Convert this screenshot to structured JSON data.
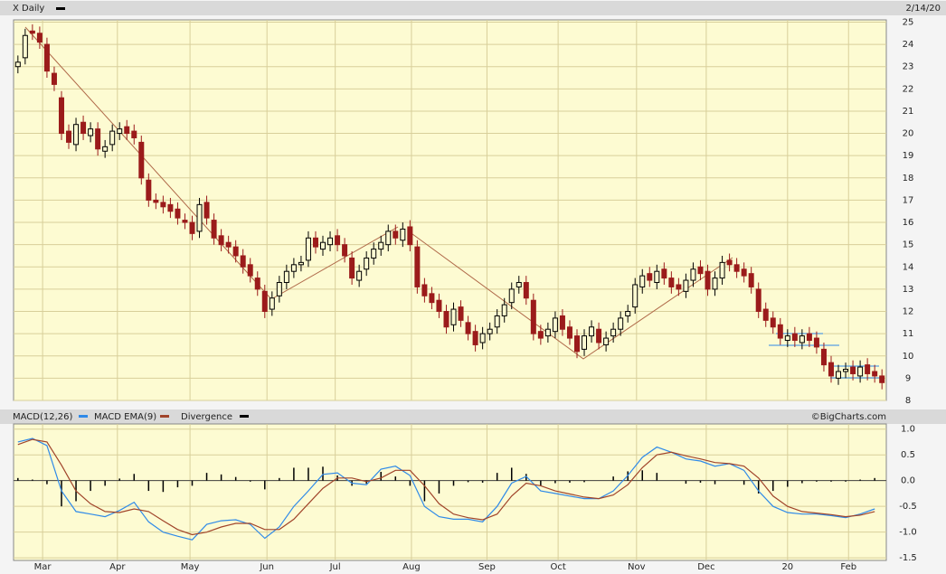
{
  "header": {
    "symbol_label": "X Daily",
    "date": "2/14/20",
    "credit": "©BigCharts.com"
  },
  "chart_data": [
    {
      "type": "candlestick",
      "up_color": "#000000",
      "down_color": "#9b1b1b",
      "grid": true,
      "xlim": [
        -0.6,
        119.6
      ],
      "xticks": [
        {
          "value": 3.4,
          "label": "Mar"
        },
        {
          "value": 13.7,
          "label": "Apr"
        },
        {
          "value": 23.7,
          "label": "May"
        },
        {
          "value": 34.3,
          "label": "Jun"
        },
        {
          "value": 43.7,
          "label": "Jul"
        },
        {
          "value": 54.2,
          "label": "Aug"
        },
        {
          "value": 64.6,
          "label": "Sep"
        },
        {
          "value": 74.4,
          "label": "Oct"
        },
        {
          "value": 85.2,
          "label": "Nov"
        },
        {
          "value": 94.8,
          "label": "Dec"
        },
        {
          "value": 106,
          "label": "20"
        },
        {
          "value": 114.4,
          "label": "Feb"
        }
      ],
      "ylim": [
        8,
        25.1
      ],
      "yticks": [
        8,
        9,
        10,
        11,
        12,
        13,
        14,
        15,
        16,
        17,
        18,
        19,
        20,
        21,
        22,
        23,
        24,
        25
      ],
      "open": [
        23.0,
        23.4,
        24.6,
        24.5,
        24.0,
        22.7,
        21.6,
        20.1,
        19.5,
        20.5,
        19.9,
        20.2,
        19.2,
        19.5,
        20.0,
        20.3,
        20.1,
        19.6,
        17.9,
        17.0,
        16.9,
        16.8,
        16.6,
        16.1,
        16.0,
        15.6,
        16.9,
        16.1,
        15.4,
        15.1,
        14.9,
        14.5,
        14.1,
        13.5,
        12.9,
        12.1,
        12.7,
        13.3,
        13.8,
        14.1,
        14.3,
        15.3,
        14.8,
        15.0,
        15.4,
        15.0,
        14.4,
        13.4,
        13.9,
        14.4,
        14.8,
        15.0,
        15.6,
        15.2,
        15.8,
        14.9,
        13.2,
        12.8,
        12.5,
        12.0,
        11.4,
        12.2,
        11.5,
        11.1,
        10.6,
        11.0,
        11.3,
        11.8,
        12.4,
        13.1,
        13.3,
        12.5,
        11.1,
        10.9,
        11.1,
        11.8,
        11.3,
        10.9,
        10.3,
        10.9,
        11.2,
        10.5,
        10.9,
        11.2,
        11.8,
        12.2,
        13.1,
        13.7,
        13.3,
        13.9,
        13.5,
        13.2,
        12.9,
        13.4,
        14.0,
        13.8,
        13.0,
        13.5,
        14.3,
        14.1,
        13.9,
        13.7,
        13.0,
        12.1,
        11.7,
        11.4,
        10.7,
        11.0,
        10.6,
        11.0,
        10.8,
        10.3,
        9.7,
        9.0,
        9.3,
        9.5,
        9.1,
        9.6,
        9.3,
        9.1
      ],
      "high": [
        23.5,
        24.7,
        24.9,
        24.8,
        24.3,
        23.0,
        21.9,
        20.4,
        20.7,
        20.8,
        20.5,
        20.5,
        19.7,
        20.4,
        20.5,
        20.6,
        20.4,
        19.9,
        18.2,
        17.3,
        17.2,
        17.1,
        16.9,
        16.4,
        16.3,
        17.1,
        17.2,
        16.4,
        15.7,
        15.4,
        15.2,
        14.8,
        14.4,
        13.8,
        13.2,
        12.9,
        13.6,
        14.1,
        14.4,
        14.5,
        15.6,
        15.6,
        15.4,
        15.6,
        15.7,
        15.3,
        14.7,
        14.1,
        14.7,
        15.1,
        15.4,
        15.9,
        15.9,
        16.0,
        16.1,
        15.2,
        13.5,
        13.1,
        12.8,
        12.3,
        12.4,
        12.5,
        11.8,
        11.4,
        11.3,
        11.5,
        12.1,
        12.6,
        13.3,
        13.6,
        13.6,
        12.8,
        11.4,
        11.5,
        12.0,
        12.1,
        11.6,
        11.2,
        11.2,
        11.6,
        11.5,
        11.1,
        11.5,
        12.0,
        12.3,
        13.5,
        13.9,
        14.0,
        14.1,
        14.2,
        13.8,
        13.5,
        13.7,
        14.2,
        14.3,
        14.1,
        13.8,
        14.5,
        14.6,
        14.4,
        14.2,
        14.0,
        13.3,
        12.4,
        12.0,
        11.7,
        11.2,
        11.3,
        11.2,
        11.3,
        11.1,
        10.6,
        10.0,
        9.6,
        9.7,
        9.8,
        9.8,
        9.9,
        9.6,
        9.4
      ],
      "low": [
        22.7,
        23.1,
        24.2,
        23.8,
        22.5,
        21.9,
        19.7,
        19.3,
        19.2,
        19.7,
        19.6,
        19.0,
        18.9,
        19.2,
        19.7,
        19.7,
        19.5,
        17.7,
        16.7,
        16.6,
        16.4,
        16.2,
        15.9,
        15.7,
        15.2,
        15.3,
        15.9,
        15.0,
        14.7,
        14.6,
        14.2,
        13.7,
        13.3,
        12.7,
        11.7,
        11.8,
        12.4,
        13.0,
        13.5,
        13.8,
        14.0,
        14.6,
        14.5,
        14.7,
        14.7,
        14.2,
        13.2,
        13.1,
        13.6,
        14.1,
        14.5,
        14.7,
        15.0,
        14.9,
        14.7,
        12.8,
        12.4,
        12.1,
        11.7,
        11.0,
        11.1,
        11.3,
        10.7,
        10.2,
        10.3,
        10.7,
        11.0,
        11.5,
        12.1,
        12.8,
        12.3,
        10.7,
        10.5,
        10.6,
        10.8,
        10.9,
        10.5,
        9.9,
        10.0,
        10.6,
        10.3,
        10.2,
        10.6,
        10.9,
        11.5,
        11.9,
        12.8,
        13.1,
        13.0,
        13.2,
        12.8,
        12.7,
        12.6,
        13.1,
        13.4,
        12.7,
        12.7,
        13.2,
        13.8,
        13.5,
        13.3,
        12.8,
        11.7,
        11.3,
        11.0,
        10.5,
        10.4,
        10.4,
        10.3,
        10.4,
        10.1,
        9.3,
        8.8,
        8.7,
        9.0,
        8.9,
        8.8,
        8.9,
        8.8,
        8.5
      ],
      "close": [
        23.2,
        24.4,
        24.5,
        24.1,
        22.8,
        22.2,
        20.0,
        19.6,
        20.4,
        20.0,
        20.2,
        19.3,
        19.4,
        20.1,
        20.2,
        20.0,
        19.8,
        18.0,
        17.0,
        16.9,
        16.7,
        16.5,
        16.2,
        16.0,
        15.5,
        16.8,
        16.2,
        15.3,
        15.0,
        14.9,
        14.5,
        14.0,
        13.6,
        13.0,
        12.0,
        12.6,
        13.3,
        13.8,
        14.1,
        14.2,
        15.3,
        14.9,
        15.1,
        15.3,
        15.0,
        14.5,
        13.5,
        13.8,
        14.4,
        14.8,
        15.1,
        15.6,
        15.3,
        15.7,
        15.0,
        13.1,
        12.7,
        12.4,
        12.0,
        11.3,
        12.1,
        11.6,
        11.0,
        10.5,
        11.0,
        11.2,
        11.8,
        12.3,
        13.0,
        13.3,
        12.6,
        11.0,
        10.8,
        11.2,
        11.7,
        11.2,
        10.8,
        10.2,
        10.9,
        11.3,
        10.6,
        10.8,
        11.2,
        11.7,
        12.0,
        13.2,
        13.6,
        13.4,
        13.8,
        13.5,
        13.1,
        13.0,
        13.4,
        13.9,
        13.7,
        13.0,
        13.5,
        14.2,
        14.1,
        13.8,
        13.6,
        13.1,
        12.0,
        11.6,
        11.3,
        10.8,
        10.9,
        10.7,
        10.9,
        10.7,
        10.4,
        9.6,
        9.1,
        9.3,
        9.4,
        9.2,
        9.5,
        9.2,
        9.1,
        8.8
      ]
    },
    {
      "type": "macd",
      "xlim": [
        -0.6,
        119.6
      ],
      "ylim": [
        -1.55,
        1.1
      ],
      "yticks": [
        {
          "value": 1.0,
          "label": "1.0"
        },
        0.5,
        {
          "value": 0,
          "label": "0.0"
        },
        -0.5,
        {
          "value": -1.0,
          "label": "-1.0"
        },
        -1.5
      ],
      "x": [
        0,
        2,
        4,
        6,
        8,
        10,
        12,
        14,
        16,
        18,
        20,
        22,
        24,
        26,
        28,
        30,
        32,
        34,
        36,
        38,
        40,
        42,
        44,
        46,
        48,
        50,
        52,
        54,
        56,
        58,
        60,
        62,
        64,
        66,
        68,
        70,
        72,
        74,
        76,
        78,
        80,
        82,
        84,
        86,
        88,
        90,
        92,
        94,
        96,
        98,
        100,
        102,
        104,
        106,
        108,
        110,
        112,
        114,
        116,
        118
      ],
      "series": [
        {
          "name": "MACD(12,26)",
          "color": "#2f8ae8",
          "style": "line",
          "values": [
            0.75,
            0.82,
            0.68,
            -0.2,
            -0.6,
            -0.65,
            -0.7,
            -0.58,
            -0.42,
            -0.8,
            -1.0,
            -1.08,
            -1.15,
            -0.85,
            -0.78,
            -0.76,
            -0.85,
            -1.12,
            -0.9,
            -0.5,
            -0.2,
            0.12,
            0.15,
            -0.05,
            -0.08,
            0.22,
            0.28,
            0.1,
            -0.5,
            -0.7,
            -0.75,
            -0.75,
            -0.8,
            -0.5,
            -0.05,
            0.08,
            -0.2,
            -0.25,
            -0.3,
            -0.35,
            -0.35,
            -0.2,
            0.1,
            0.45,
            0.65,
            0.55,
            0.42,
            0.38,
            0.28,
            0.33,
            0.2,
            -0.2,
            -0.5,
            -0.62,
            -0.65,
            -0.65,
            -0.68,
            -0.72,
            -0.65,
            -0.55
          ]
        },
        {
          "name": "MACD EMA(9)",
          "color": "#a0442a",
          "style": "line",
          "values": [
            0.7,
            0.8,
            0.75,
            0.3,
            -0.2,
            -0.45,
            -0.6,
            -0.62,
            -0.55,
            -0.6,
            -0.78,
            -0.95,
            -1.05,
            -1.0,
            -0.9,
            -0.83,
            -0.83,
            -0.95,
            -0.95,
            -0.75,
            -0.45,
            -0.15,
            0.05,
            0.05,
            -0.02,
            0.05,
            0.2,
            0.2,
            -0.1,
            -0.45,
            -0.65,
            -0.72,
            -0.76,
            -0.65,
            -0.3,
            -0.05,
            -0.1,
            -0.2,
            -0.26,
            -0.32,
            -0.35,
            -0.28,
            -0.08,
            0.25,
            0.5,
            0.55,
            0.48,
            0.42,
            0.35,
            0.33,
            0.28,
            0.05,
            -0.3,
            -0.5,
            -0.6,
            -0.63,
            -0.66,
            -0.7,
            -0.67,
            -0.6
          ]
        },
        {
          "name": "Divergence",
          "color": "#000000",
          "style": "bar",
          "values": [
            0.05,
            0.02,
            -0.07,
            -0.5,
            -0.4,
            -0.2,
            -0.1,
            0.04,
            0.13,
            -0.2,
            -0.22,
            -0.13,
            -0.1,
            0.15,
            0.12,
            0.07,
            -0.02,
            -0.17,
            0.05,
            0.25,
            0.25,
            0.27,
            0.1,
            -0.1,
            -0.06,
            0.17,
            0.08,
            -0.1,
            -0.4,
            -0.25,
            -0.1,
            -0.03,
            -0.04,
            0.15,
            0.25,
            0.13,
            -0.1,
            -0.05,
            -0.04,
            -0.03,
            0,
            0.08,
            0.18,
            0.2,
            0.15,
            0,
            -0.06,
            -0.04,
            -0.07,
            0,
            -0.08,
            -0.25,
            -0.2,
            -0.12,
            -0.05,
            -0.02,
            -0.02,
            -0.02,
            0.02,
            0.05
          ]
        }
      ]
    }
  ]
}
